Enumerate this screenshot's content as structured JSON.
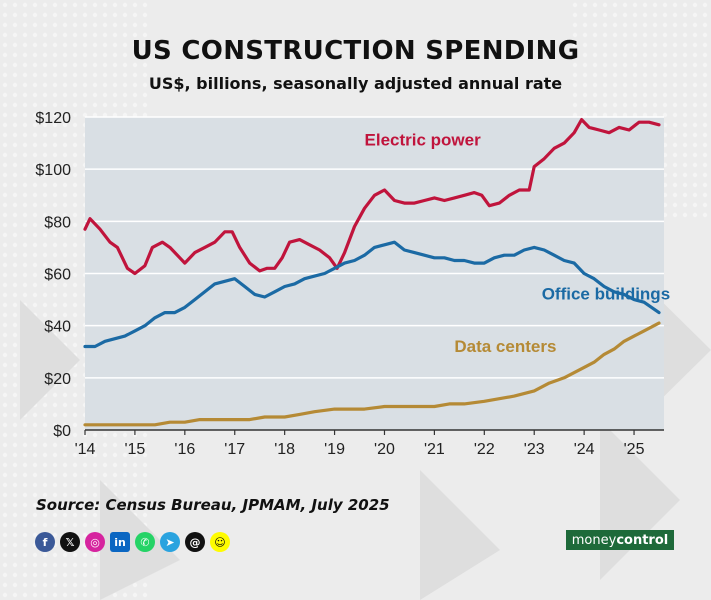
{
  "header": {
    "title": "US CONSTRUCTION SPENDING",
    "subtitle": "US$, billions, seasonally adjusted annual rate"
  },
  "footer": {
    "source": "Source: Census Bureau, JPMAM, July 2025",
    "brand_part1": "money",
    "brand_part2": "control",
    "socials": [
      "facebook-icon",
      "x-icon",
      "instagram-icon",
      "linkedin-icon",
      "whatsapp-icon",
      "telegram-icon",
      "threads-icon",
      "snapchat-icon"
    ]
  },
  "chart_data": {
    "type": "line",
    "title": "US CONSTRUCTION SPENDING",
    "subtitle": "US$, billions, seasonally adjusted annual rate",
    "xlabel": "",
    "ylabel": "",
    "xlim": [
      2014,
      2025.6
    ],
    "ylim": [
      0,
      120
    ],
    "x_ticks": [
      2014,
      2015,
      2016,
      2017,
      2018,
      2019,
      2020,
      2021,
      2022,
      2023,
      2024,
      2025
    ],
    "x_tick_labels": [
      "'14",
      "'15",
      "'16",
      "'17",
      "'18",
      "'19",
      "'20",
      "'21",
      "'22",
      "'23",
      "'24",
      "'25"
    ],
    "y_ticks": [
      0,
      20,
      40,
      60,
      80,
      100,
      120
    ],
    "y_tick_labels": [
      "$0",
      "$20",
      "$40",
      "$60",
      "$80",
      "$100",
      "$120"
    ],
    "grid": "horizontal",
    "colors": {
      "plot_bg": "#d9dfe4",
      "grid": "#ffffff",
      "electric": "#c0143c",
      "office": "#1b6aa4",
      "data": "#b58a35"
    },
    "series": [
      {
        "name": "Electric power",
        "color": "#c0143c",
        "x": [
          2014.0,
          2014.1,
          2014.3,
          2014.5,
          2014.65,
          2014.85,
          2015.0,
          2015.2,
          2015.35,
          2015.55,
          2015.7,
          2015.9,
          2016.0,
          2016.2,
          2016.4,
          2016.6,
          2016.8,
          2016.95,
          2017.1,
          2017.3,
          2017.5,
          2017.65,
          2017.8,
          2017.95,
          2018.1,
          2018.3,
          2018.5,
          2018.7,
          2018.9,
          2019.05,
          2019.2,
          2019.4,
          2019.6,
          2019.8,
          2020.0,
          2020.2,
          2020.4,
          2020.6,
          2020.8,
          2021.0,
          2021.2,
          2021.4,
          2021.6,
          2021.8,
          2021.95,
          2022.1,
          2022.3,
          2022.5,
          2022.7,
          2022.9,
          2023.0,
          2023.2,
          2023.4,
          2023.6,
          2023.8,
          2023.95,
          2024.1,
          2024.3,
          2024.5,
          2024.7,
          2024.9,
          2025.1,
          2025.3,
          2025.5
        ],
        "values": [
          77,
          81,
          77,
          72,
          70,
          62,
          60,
          63,
          70,
          72,
          70,
          66,
          64,
          68,
          70,
          72,
          76,
          76,
          70,
          64,
          61,
          62,
          62,
          66,
          72,
          73,
          71,
          69,
          66,
          62,
          68,
          78,
          85,
          90,
          92,
          88,
          87,
          87,
          88,
          89,
          88,
          89,
          90,
          91,
          90,
          86,
          87,
          90,
          92,
          92,
          101,
          104,
          108,
          110,
          114,
          119,
          116,
          115,
          114,
          116,
          115,
          118,
          118,
          117
        ]
      },
      {
        "name": "Office buildings",
        "color": "#1b6aa4",
        "x": [
          2014.0,
          2014.2,
          2014.4,
          2014.6,
          2014.8,
          2015.0,
          2015.2,
          2015.4,
          2015.6,
          2015.8,
          2016.0,
          2016.2,
          2016.4,
          2016.6,
          2016.8,
          2017.0,
          2017.2,
          2017.4,
          2017.6,
          2017.8,
          2018.0,
          2018.2,
          2018.4,
          2018.6,
          2018.8,
          2019.0,
          2019.2,
          2019.4,
          2019.6,
          2019.8,
          2020.0,
          2020.2,
          2020.4,
          2020.6,
          2020.8,
          2021.0,
          2021.2,
          2021.4,
          2021.6,
          2021.8,
          2022.0,
          2022.2,
          2022.4,
          2022.6,
          2022.8,
          2023.0,
          2023.2,
          2023.4,
          2023.6,
          2023.8,
          2024.0,
          2024.2,
          2024.4,
          2024.6,
          2024.8,
          2025.0,
          2025.2,
          2025.5
        ],
        "values": [
          32,
          32,
          34,
          35,
          36,
          38,
          40,
          43,
          45,
          45,
          47,
          50,
          53,
          56,
          57,
          58,
          55,
          52,
          51,
          53,
          55,
          56,
          58,
          59,
          60,
          62,
          64,
          65,
          67,
          70,
          71,
          72,
          69,
          68,
          67,
          66,
          66,
          65,
          65,
          64,
          64,
          66,
          67,
          67,
          69,
          70,
          69,
          67,
          65,
          64,
          60,
          58,
          55,
          53,
          52,
          50,
          49,
          45
        ]
      },
      {
        "name": "Data centers",
        "color": "#b58a35",
        "x": [
          2014.0,
          2014.5,
          2015.0,
          2015.4,
          2015.7,
          2016.0,
          2016.3,
          2016.6,
          2017.0,
          2017.3,
          2017.6,
          2018.0,
          2018.3,
          2018.6,
          2019.0,
          2019.3,
          2019.6,
          2020.0,
          2020.3,
          2020.6,
          2021.0,
          2021.3,
          2021.6,
          2022.0,
          2022.3,
          2022.6,
          2023.0,
          2023.3,
          2023.6,
          2024.0,
          2024.2,
          2024.4,
          2024.6,
          2024.8,
          2025.0,
          2025.2,
          2025.5
        ],
        "values": [
          2,
          2,
          2,
          2,
          3,
          3,
          4,
          4,
          4,
          4,
          5,
          5,
          6,
          7,
          8,
          8,
          8,
          9,
          9,
          9,
          9,
          10,
          10,
          11,
          12,
          13,
          15,
          18,
          20,
          24,
          26,
          29,
          31,
          34,
          36,
          38,
          41
        ]
      }
    ],
    "annotations": [
      {
        "text": "Electric power",
        "x": 2019.6,
        "y": 109,
        "color": "#c0143c"
      },
      {
        "text": "Office buildings",
        "x": 2023.15,
        "y": 50,
        "color": "#1b6aa4"
      },
      {
        "text": "Data centers",
        "x": 2021.4,
        "y": 30,
        "color": "#b58a35"
      }
    ]
  }
}
